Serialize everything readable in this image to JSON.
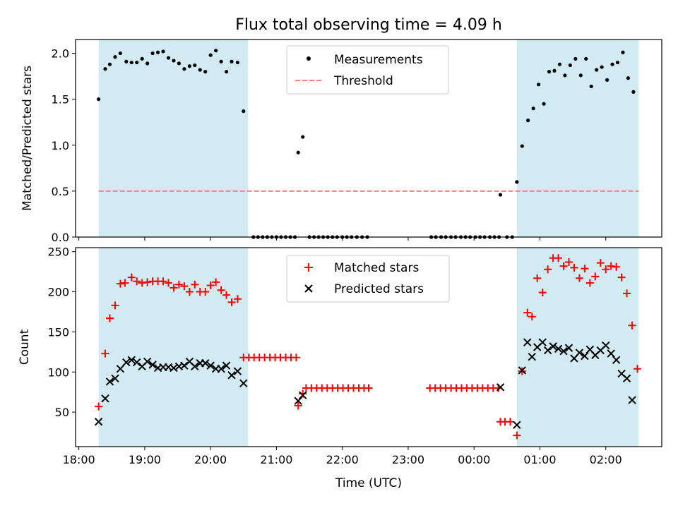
{
  "colors": {
    "shade": "#add8e6",
    "threshold": "#ff7f7f",
    "measurement": "#000000",
    "matched": "#ff0000",
    "predicted": "#000000"
  },
  "chart_data": {
    "type": "scatter",
    "title": "Flux total observing time = 4.09 h",
    "xlabel": "Time (UTC)",
    "x_unit": "hours since 18:00",
    "xlim": [
      -0.05,
      8.85
    ],
    "x_ticks": [
      0,
      1,
      2,
      3,
      4,
      5,
      6,
      7,
      8
    ],
    "x_tick_labels": [
      "18:00",
      "19:00",
      "20:00",
      "21:00",
      "22:00",
      "23:00",
      "00:00",
      "01:00",
      "02:00"
    ],
    "shaded_intervals": [
      [
        0.3,
        2.57
      ],
      [
        6.65,
        8.5
      ]
    ],
    "top": {
      "ylabel": "Matched/Predicted stars",
      "ylim": [
        0,
        2.15
      ],
      "y_ticks": [
        0,
        0.5,
        1.0,
        1.5,
        2.0
      ],
      "y_tick_labels": [
        "0.0",
        "0.5",
        "1.0",
        "1.5",
        "2.0"
      ],
      "threshold": {
        "name": "Threshold",
        "value": 0.5,
        "x_range": [
          0.3,
          8.5
        ]
      },
      "legend": [
        "Measurements",
        "Threshold"
      ],
      "measurements": {
        "name": "Measurements",
        "points": [
          [
            0.3,
            1.5
          ],
          [
            0.4,
            1.83
          ],
          [
            0.47,
            1.88
          ],
          [
            0.55,
            1.96
          ],
          [
            0.63,
            2.0
          ],
          [
            0.72,
            1.91
          ],
          [
            0.8,
            1.9
          ],
          [
            0.88,
            1.9
          ],
          [
            0.96,
            1.94
          ],
          [
            1.04,
            1.89
          ],
          [
            1.12,
            2.0
          ],
          [
            1.2,
            2.01
          ],
          [
            1.28,
            2.02
          ],
          [
            1.36,
            1.95
          ],
          [
            1.44,
            1.92
          ],
          [
            1.52,
            1.89
          ],
          [
            1.6,
            1.83
          ],
          [
            1.68,
            1.86
          ],
          [
            1.76,
            1.87
          ],
          [
            1.84,
            1.82
          ],
          [
            1.92,
            1.8
          ],
          [
            2.0,
            1.98
          ],
          [
            2.08,
            2.03
          ],
          [
            2.16,
            1.91
          ],
          [
            2.24,
            1.8
          ],
          [
            2.32,
            1.91
          ],
          [
            2.41,
            1.9
          ],
          [
            2.5,
            1.37
          ],
          [
            2.65,
            0
          ],
          [
            2.72,
            0
          ],
          [
            2.79,
            0
          ],
          [
            2.86,
            0
          ],
          [
            2.93,
            0
          ],
          [
            3.0,
            0
          ],
          [
            3.07,
            0
          ],
          [
            3.14,
            0
          ],
          [
            3.21,
            0
          ],
          [
            3.28,
            0
          ],
          [
            3.33,
            0.92
          ],
          [
            3.4,
            1.09
          ],
          [
            3.5,
            0
          ],
          [
            3.57,
            0
          ],
          [
            3.64,
            0
          ],
          [
            3.71,
            0
          ],
          [
            3.78,
            0
          ],
          [
            3.85,
            0
          ],
          [
            3.92,
            0
          ],
          [
            4.0,
            0
          ],
          [
            4.07,
            0
          ],
          [
            4.14,
            0
          ],
          [
            4.22,
            0
          ],
          [
            4.3,
            0
          ],
          [
            4.38,
            0
          ],
          [
            5.35,
            0
          ],
          [
            5.42,
            0
          ],
          [
            5.5,
            0
          ],
          [
            5.57,
            0
          ],
          [
            5.65,
            0
          ],
          [
            5.72,
            0
          ],
          [
            5.8,
            0
          ],
          [
            5.87,
            0
          ],
          [
            5.94,
            0
          ],
          [
            6.02,
            0
          ],
          [
            6.09,
            0
          ],
          [
            6.16,
            0
          ],
          [
            6.24,
            0
          ],
          [
            6.31,
            0
          ],
          [
            6.38,
            0
          ],
          [
            6.4,
            0.46
          ],
          [
            6.5,
            0
          ],
          [
            6.58,
            0
          ],
          [
            6.65,
            0.6
          ],
          [
            6.73,
            0.99
          ],
          [
            6.82,
            1.27
          ],
          [
            6.9,
            1.4
          ],
          [
            6.98,
            1.66
          ],
          [
            7.06,
            1.45
          ],
          [
            7.14,
            1.8
          ],
          [
            7.22,
            1.81
          ],
          [
            7.3,
            1.88
          ],
          [
            7.38,
            1.76
          ],
          [
            7.46,
            1.87
          ],
          [
            7.54,
            1.94
          ],
          [
            7.62,
            1.76
          ],
          [
            7.7,
            1.94
          ],
          [
            7.78,
            1.64
          ],
          [
            7.86,
            1.82
          ],
          [
            7.94,
            1.85
          ],
          [
            8.02,
            1.71
          ],
          [
            8.1,
            1.88
          ],
          [
            8.18,
            1.9
          ],
          [
            8.26,
            2.01
          ],
          [
            8.34,
            1.73
          ],
          [
            8.42,
            1.58
          ]
        ]
      }
    },
    "bottom": {
      "ylabel": "Count",
      "ylim": [
        7,
        255
      ],
      "y_ticks": [
        50,
        100,
        150,
        200,
        250
      ],
      "y_tick_labels": [
        "50",
        "100",
        "150",
        "200",
        "250"
      ],
      "legend": [
        "Matched stars",
        "Predicted stars"
      ],
      "matched": {
        "name": "Matched stars",
        "points": [
          [
            0.3,
            57
          ],
          [
            0.4,
            123
          ],
          [
            0.47,
            167
          ],
          [
            0.55,
            183
          ],
          [
            0.63,
            210
          ],
          [
            0.7,
            211
          ],
          [
            0.8,
            218
          ],
          [
            0.88,
            213
          ],
          [
            0.96,
            211
          ],
          [
            1.04,
            212
          ],
          [
            1.12,
            213
          ],
          [
            1.2,
            213
          ],
          [
            1.28,
            213
          ],
          [
            1.36,
            211
          ],
          [
            1.44,
            205
          ],
          [
            1.52,
            209
          ],
          [
            1.6,
            207
          ],
          [
            1.68,
            200
          ],
          [
            1.76,
            209
          ],
          [
            1.84,
            200
          ],
          [
            1.92,
            200
          ],
          [
            2.0,
            208
          ],
          [
            2.08,
            212
          ],
          [
            2.16,
            202
          ],
          [
            2.24,
            196
          ],
          [
            2.32,
            187
          ],
          [
            2.41,
            191
          ],
          [
            2.5,
            118
          ],
          [
            2.58,
            118
          ],
          [
            2.66,
            118
          ],
          [
            2.74,
            118
          ],
          [
            2.82,
            118
          ],
          [
            2.9,
            118
          ],
          [
            2.98,
            118
          ],
          [
            3.06,
            118
          ],
          [
            3.14,
            118
          ],
          [
            3.22,
            118
          ],
          [
            3.3,
            118
          ],
          [
            3.33,
            58
          ],
          [
            3.4,
            73
          ],
          [
            3.45,
            80
          ],
          [
            3.53,
            80
          ],
          [
            3.61,
            80
          ],
          [
            3.69,
            80
          ],
          [
            3.77,
            80
          ],
          [
            3.85,
            80
          ],
          [
            3.93,
            80
          ],
          [
            4.01,
            80
          ],
          [
            4.09,
            80
          ],
          [
            4.17,
            80
          ],
          [
            4.25,
            80
          ],
          [
            4.33,
            80
          ],
          [
            4.4,
            80
          ],
          [
            5.33,
            80
          ],
          [
            5.41,
            80
          ],
          [
            5.49,
            80
          ],
          [
            5.57,
            80
          ],
          [
            5.65,
            80
          ],
          [
            5.73,
            80
          ],
          [
            5.81,
            80
          ],
          [
            5.89,
            80
          ],
          [
            5.97,
            80
          ],
          [
            6.05,
            80
          ],
          [
            6.13,
            80
          ],
          [
            6.21,
            80
          ],
          [
            6.29,
            80
          ],
          [
            6.37,
            80
          ],
          [
            6.4,
            38
          ],
          [
            6.47,
            38
          ],
          [
            6.55,
            38
          ],
          [
            6.65,
            21
          ],
          [
            6.73,
            101
          ],
          [
            6.81,
            174
          ],
          [
            6.88,
            169
          ],
          [
            6.96,
            217
          ],
          [
            7.04,
            199
          ],
          [
            7.12,
            228
          ],
          [
            7.2,
            242
          ],
          [
            7.28,
            242
          ],
          [
            7.36,
            232
          ],
          [
            7.44,
            237
          ],
          [
            7.52,
            230
          ],
          [
            7.6,
            217
          ],
          [
            7.68,
            229
          ],
          [
            7.76,
            211
          ],
          [
            7.84,
            219
          ],
          [
            7.92,
            236
          ],
          [
            8.0,
            228
          ],
          [
            8.08,
            232
          ],
          [
            8.16,
            231
          ],
          [
            8.24,
            218
          ],
          [
            8.32,
            198
          ],
          [
            8.4,
            158
          ],
          [
            8.48,
            104
          ]
        ]
      },
      "predicted": {
        "name": "Predicted stars",
        "points": [
          [
            0.3,
            38
          ],
          [
            0.4,
            67
          ],
          [
            0.47,
            88
          ],
          [
            0.55,
            92
          ],
          [
            0.63,
            104
          ],
          [
            0.72,
            112
          ],
          [
            0.8,
            115
          ],
          [
            0.88,
            112
          ],
          [
            0.96,
            107
          ],
          [
            1.04,
            113
          ],
          [
            1.12,
            109
          ],
          [
            1.2,
            105
          ],
          [
            1.28,
            106
          ],
          [
            1.36,
            106
          ],
          [
            1.44,
            105
          ],
          [
            1.52,
            107
          ],
          [
            1.6,
            108
          ],
          [
            1.68,
            113
          ],
          [
            1.76,
            107
          ],
          [
            1.84,
            111
          ],
          [
            1.92,
            111
          ],
          [
            2.0,
            108
          ],
          [
            2.08,
            104
          ],
          [
            2.16,
            104
          ],
          [
            2.24,
            108
          ],
          [
            2.32,
            96
          ],
          [
            2.41,
            101
          ],
          [
            2.5,
            86
          ],
          [
            3.33,
            64
          ],
          [
            3.4,
            71
          ],
          [
            6.4,
            81
          ],
          [
            6.65,
            34
          ],
          [
            6.73,
            102
          ],
          [
            6.81,
            137
          ],
          [
            6.88,
            119
          ],
          [
            6.96,
            131
          ],
          [
            7.04,
            137
          ],
          [
            7.12,
            127
          ],
          [
            7.2,
            132
          ],
          [
            7.28,
            129
          ],
          [
            7.36,
            126
          ],
          [
            7.44,
            130
          ],
          [
            7.52,
            117
          ],
          [
            7.6,
            124
          ],
          [
            7.68,
            120
          ],
          [
            7.76,
            128
          ],
          [
            7.84,
            121
          ],
          [
            7.92,
            127
          ],
          [
            8.0,
            133
          ],
          [
            8.08,
            123
          ],
          [
            8.16,
            115
          ],
          [
            8.24,
            98
          ],
          [
            8.32,
            92
          ],
          [
            8.4,
            65
          ]
        ]
      }
    }
  }
}
